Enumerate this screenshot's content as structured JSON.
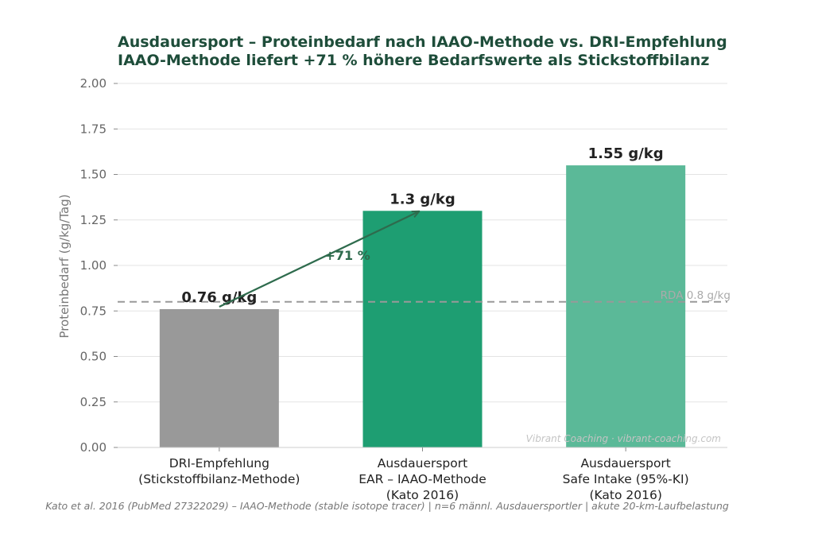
{
  "chart_data": {
    "type": "bar",
    "title": "Ausdauersport – Proteinbedarf nach IAAO-Methode vs. DRI-Empfehlung",
    "subtitle": "IAAO-Methode liefert +71 % höhere Bedarfswerte als Stickstoffbilanz",
    "ylabel": "Proteinbedarf (g/kg/Tag)",
    "xlabel": "",
    "ylim": [
      0,
      2.0
    ],
    "yticks": [
      0.0,
      0.25,
      0.5,
      0.75,
      1.0,
      1.25,
      1.5,
      1.75,
      2.0
    ],
    "ytick_labels": [
      "0.00",
      "0.25",
      "0.50",
      "0.75",
      "1.00",
      "1.25",
      "1.50",
      "1.75",
      "2.00"
    ],
    "grid": "y",
    "categories": [
      [
        "DRI-Empfehlung",
        "(Stickstoffbilanz-Methode)"
      ],
      [
        "Ausdauersport",
        "EAR – IAAO-Methode",
        "(Kato 2016)"
      ],
      [
        "Ausdauersport",
        "Safe Intake (95%-KI)",
        "(Kato 2016)"
      ]
    ],
    "values": [
      0.76,
      1.3,
      1.55
    ],
    "data_labels": [
      "0.76 g/kg",
      "1.3 g/kg",
      "1.55 g/kg"
    ],
    "colors": [
      "#999999",
      "#1e9e72",
      "#5bb998"
    ],
    "reference_line": {
      "value": 0.8,
      "label": "RDA 0.8 g/kg",
      "color": "#999999"
    },
    "annotation": {
      "text": "+71 %",
      "from": [
        0,
        0.76
      ],
      "to": [
        1,
        1.3
      ],
      "color": "#2e6b4d"
    },
    "watermark": "Vibrant Coaching · vibrant-coaching.com",
    "source": "Kato et al. 2016 (PubMed 27322029) – IAAO-Methode (stable isotope tracer) | n=6 männl. Ausdauersportler | akute 20-km-Laufbelastung"
  }
}
